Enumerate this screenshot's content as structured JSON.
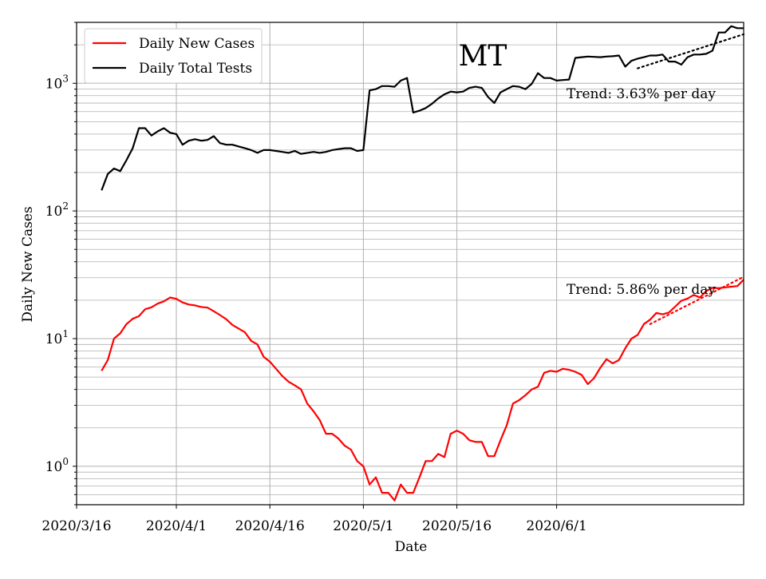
{
  "chart_data": {
    "type": "line",
    "title": "MT",
    "xlabel": "Date",
    "ylabel": "Daily New Cases",
    "yscale": "log",
    "ylim": [
      0.5,
      3000
    ],
    "xlim_day_index": [
      -4,
      103
    ],
    "x_start_date": "2020-03-20",
    "grid": true,
    "legend_position": "top-left",
    "x_ticks": [
      {
        "label": "2020/3/16",
        "day": -4
      },
      {
        "label": "2020/4/1",
        "day": 12
      },
      {
        "label": "2020/4/16",
        "day": 27
      },
      {
        "label": "2020/5/1",
        "day": 42
      },
      {
        "label": "2020/5/16",
        "day": 57
      },
      {
        "label": "2020/6/1",
        "day": 73
      }
    ],
    "y_ticks": [
      {
        "base": "10",
        "exp": "0",
        "value": 1
      },
      {
        "base": "10",
        "exp": "1",
        "value": 10
      },
      {
        "base": "10",
        "exp": "2",
        "value": 100
      },
      {
        "base": "10",
        "exp": "3",
        "value": 1000
      }
    ],
    "series": [
      {
        "name": "Daily New Cases",
        "color": "#ff0000",
        "x_day": [
          0,
          1,
          2,
          3,
          4,
          5,
          6,
          7,
          8,
          9,
          10,
          11,
          12,
          13,
          14,
          15,
          16,
          17,
          18,
          19,
          20,
          21,
          22,
          23,
          24,
          25,
          26,
          27,
          28,
          29,
          30,
          31,
          32,
          33,
          34,
          35,
          36,
          37,
          38,
          39,
          40,
          41,
          42,
          43,
          44,
          45,
          46,
          47,
          48,
          49,
          50,
          51,
          52,
          53,
          54,
          55,
          56,
          57,
          58,
          59,
          60,
          61,
          62,
          63,
          64,
          65,
          66,
          67,
          68,
          69,
          70,
          71,
          72,
          73,
          74,
          75,
          76,
          77,
          78,
          79,
          80,
          81,
          82,
          83,
          84,
          85,
          86,
          87,
          88,
          89,
          90,
          91,
          92,
          93,
          94,
          95,
          96,
          97,
          98,
          99,
          100,
          101,
          102,
          103
        ],
        "values": [
          5.6,
          6.8,
          10,
          11,
          13,
          14.3,
          15,
          17,
          17.6,
          18.8,
          19.6,
          21,
          20.5,
          19.2,
          18.5,
          18.2,
          17.7,
          17.5,
          16.4,
          15.3,
          14.2,
          12.8,
          12,
          11.2,
          9.6,
          9,
          7.2,
          6.6,
          5.8,
          5.1,
          4.6,
          4.3,
          4.0,
          3.1,
          2.7,
          2.3,
          1.8,
          1.8,
          1.65,
          1.45,
          1.35,
          1.1,
          1.0,
          0.72,
          0.82,
          0.62,
          0.62,
          0.54,
          0.72,
          0.62,
          0.62,
          0.82,
          1.1,
          1.1,
          1.25,
          1.18,
          1.8,
          1.9,
          1.8,
          1.6,
          1.55,
          1.55,
          1.2,
          1.2,
          1.6,
          2.1,
          3.1,
          3.3,
          3.6,
          4.0,
          4.2,
          5.4,
          5.6,
          5.5,
          5.8,
          5.7,
          5.5,
          5.2,
          4.4,
          4.9,
          5.9,
          6.9,
          6.4,
          6.8,
          8.4,
          10,
          10.7,
          13,
          14.1,
          15.9,
          15.5,
          16,
          17.8,
          19.8,
          20.6,
          22,
          21,
          23.6,
          25,
          24.8,
          25.2,
          25.5,
          25.8,
          29
        ]
      },
      {
        "name": "Daily Total Tests",
        "color": "#000000",
        "x_day": [
          0,
          1,
          2,
          3,
          4,
          5,
          6,
          7,
          8,
          9,
          10,
          11,
          12,
          13,
          14,
          15,
          16,
          17,
          18,
          19,
          20,
          21,
          22,
          23,
          24,
          25,
          26,
          27,
          28,
          29,
          30,
          31,
          32,
          33,
          34,
          35,
          36,
          37,
          38,
          39,
          40,
          41,
          42,
          43,
          44,
          45,
          46,
          47,
          48,
          49,
          50,
          51,
          52,
          53,
          54,
          55,
          56,
          57,
          58,
          59,
          60,
          61,
          62,
          63,
          64,
          65,
          66,
          67,
          68,
          69,
          70,
          71,
          72,
          73,
          74,
          75,
          76,
          77,
          78,
          79,
          80,
          81,
          82,
          83,
          84,
          85,
          86,
          87,
          88,
          89,
          90,
          91,
          92,
          93,
          94,
          95,
          96,
          97,
          98,
          99,
          100,
          101,
          102,
          103
        ],
        "values": [
          145,
          195,
          215,
          205,
          250,
          310,
          445,
          445,
          390,
          420,
          445,
          410,
          400,
          330,
          355,
          365,
          355,
          360,
          385,
          340,
          330,
          330,
          320,
          310,
          300,
          285,
          300,
          300,
          295,
          290,
          285,
          295,
          280,
          285,
          290,
          285,
          290,
          300,
          305,
          310,
          310,
          295,
          300,
          880,
          900,
          950,
          950,
          940,
          1050,
          1100,
          590,
          610,
          640,
          690,
          760,
          820,
          860,
          850,
          860,
          920,
          940,
          920,
          780,
          700,
          850,
          900,
          950,
          940,
          900,
          990,
          1200,
          1100,
          1100,
          1050,
          1060,
          1070,
          1580,
          1600,
          1620,
          1610,
          1600,
          1620,
          1630,
          1650,
          1350,
          1500,
          1560,
          1600,
          1650,
          1650,
          1680,
          1480,
          1480,
          1400,
          1600,
          1680,
          1680,
          1700,
          1800,
          2500,
          2500,
          2800,
          2700,
          2700
        ]
      }
    ],
    "trends": [
      {
        "label": "Trend: 3.63% per day",
        "series": "Daily Total Tests",
        "color": "#000000",
        "x_day": [
          86,
          103
        ],
        "values": [
          1310,
          2420
        ]
      },
      {
        "label": "Trend: 5.86% per day",
        "series": "Daily New Cases",
        "color": "#ff0000",
        "x_day": [
          88,
          103
        ],
        "values": [
          13.0,
          30.5
        ]
      }
    ]
  }
}
